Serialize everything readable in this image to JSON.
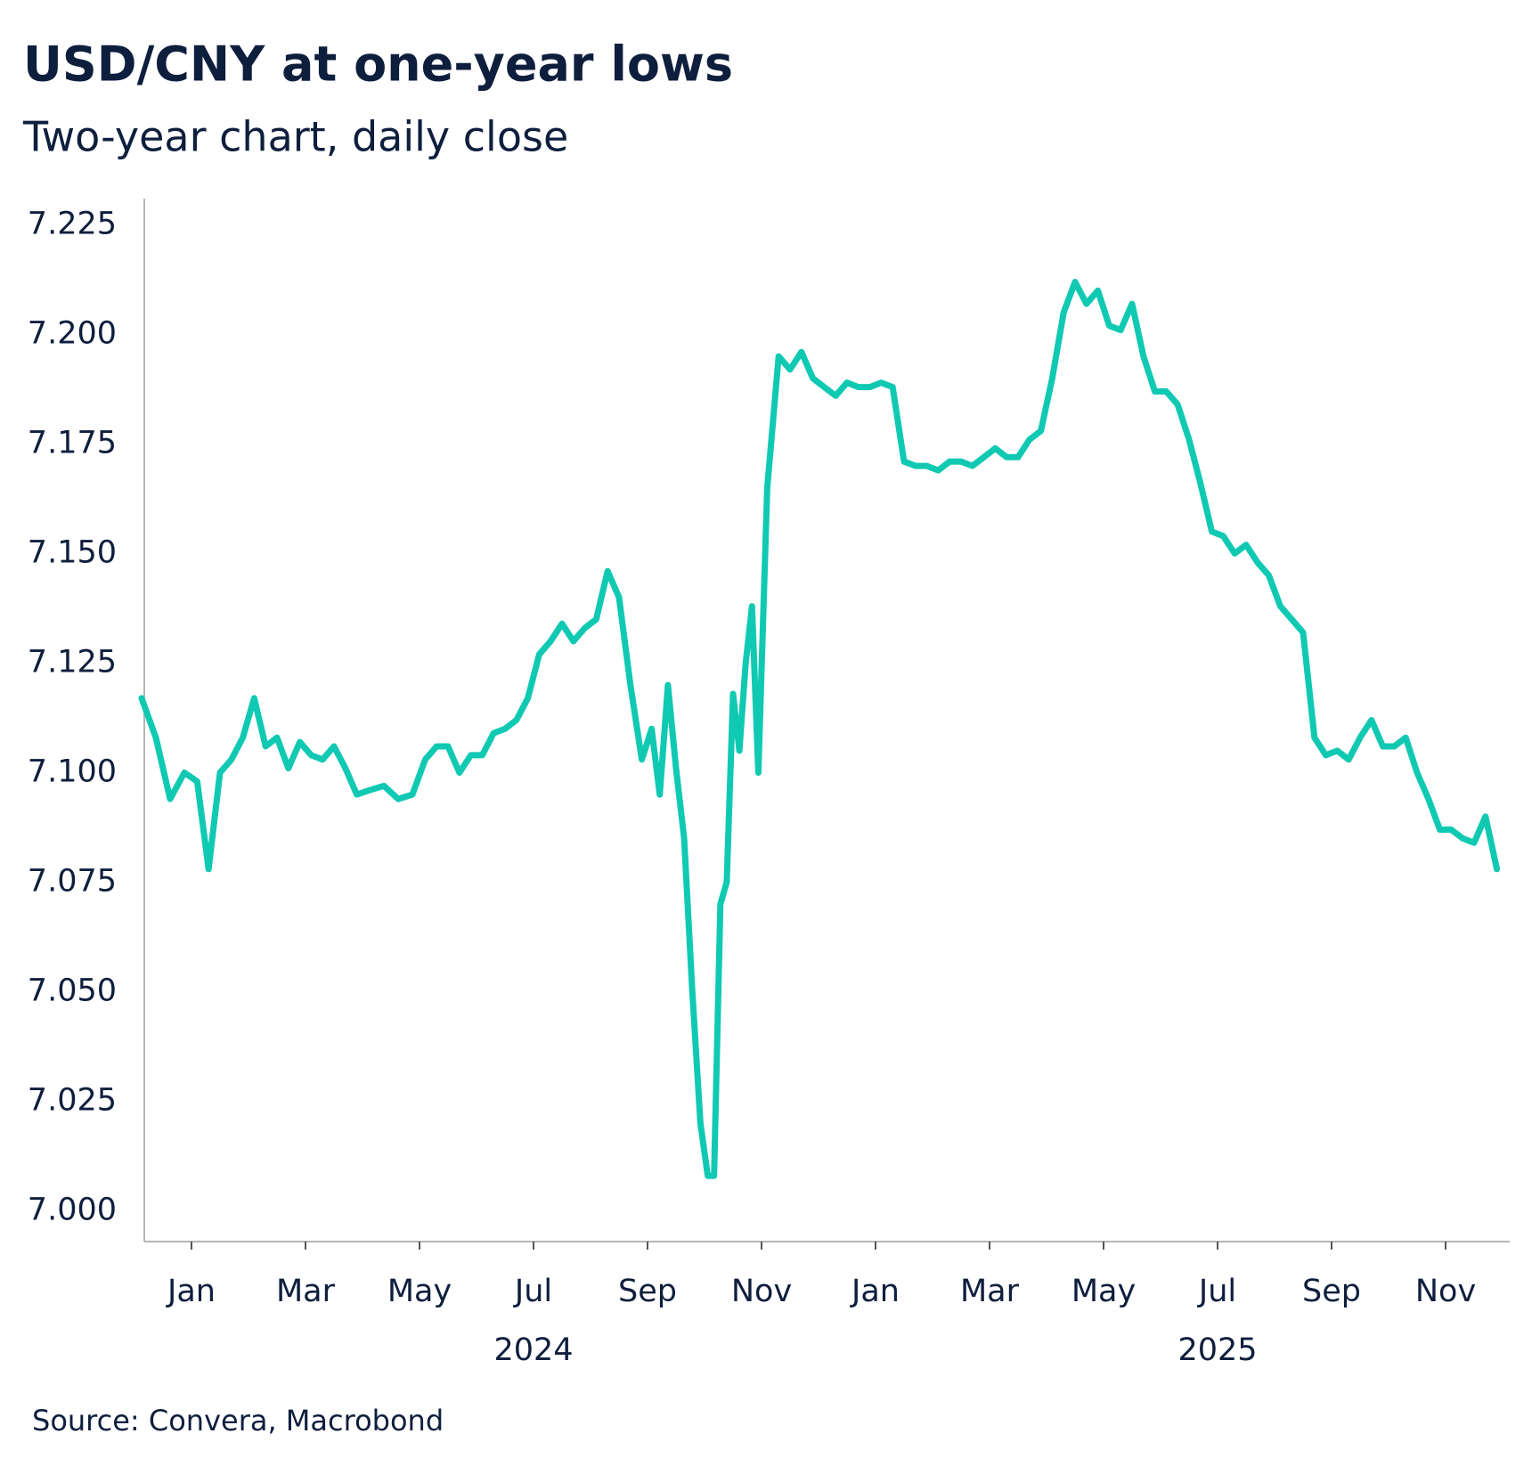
{
  "chart_data": {
    "type": "line",
    "title": "USD/CNY at one-year lows",
    "subtitle": "Two-year chart, daily close",
    "source": "Source: Convera, Macrobond",
    "x": [
      "2023-12",
      "2023-12",
      "2023-12",
      "2023-12",
      "2024-01",
      "2024-01",
      "2024-01",
      "2024-01",
      "2024-01",
      "2024-02",
      "2024-02",
      "2024-02",
      "2024-02",
      "2024-02",
      "2024-03",
      "2024-03",
      "2024-03",
      "2024-03",
      "2024-03",
      "2024-04",
      "2024-04",
      "2024-04",
      "2024-04",
      "2024-05",
      "2024-05",
      "2024-05",
      "2024-05",
      "2024-05",
      "2024-06",
      "2024-06",
      "2024-06",
      "2024-06",
      "2024-06",
      "2024-07",
      "2024-07",
      "2024-07",
      "2024-07",
      "2024-07",
      "2024-08",
      "2024-08",
      "2024-08",
      "2024-08",
      "2024-08",
      "2024-09",
      "2024-09",
      "2024-09",
      "2024-09",
      "2024-09",
      "2024-09",
      "2024-09",
      "2024-10",
      "2024-10",
      "2024-10",
      "2024-10",
      "2024-10",
      "2024-10",
      "2024-10",
      "2024-10",
      "2024-10",
      "2024-11",
      "2024-11",
      "2024-11",
      "2024-11",
      "2024-11",
      "2024-12",
      "2024-12",
      "2024-12",
      "2024-12",
      "2024-12",
      "2025-01",
      "2025-01",
      "2025-01",
      "2025-01",
      "2025-01",
      "2025-02",
      "2025-02",
      "2025-02",
      "2025-02",
      "2025-02",
      "2025-03",
      "2025-03",
      "2025-03",
      "2025-03",
      "2025-03",
      "2025-04",
      "2025-04",
      "2025-04",
      "2025-04",
      "2025-04",
      "2025-05",
      "2025-05",
      "2025-05",
      "2025-05",
      "2025-05",
      "2025-06",
      "2025-06",
      "2025-06",
      "2025-06",
      "2025-06",
      "2025-07",
      "2025-07",
      "2025-07",
      "2025-07",
      "2025-07",
      "2025-08",
      "2025-08",
      "2025-08",
      "2025-08",
      "2025-08",
      "2025-09",
      "2025-09",
      "2025-09",
      "2025-09",
      "2025-09",
      "2025-10",
      "2025-10",
      "2025-10",
      "2025-10",
      "2025-10",
      "2025-11",
      "2025-11",
      "2025-11",
      "2025-11",
      "2025-11"
    ],
    "series": [
      {
        "name": "USD/CNY",
        "color": "#10c9b3",
        "values": [
          7.117,
          7.108,
          7.094,
          7.1,
          7.098,
          7.078,
          7.1,
          7.103,
          7.108,
          7.117,
          7.106,
          7.108,
          7.101,
          7.107,
          7.104,
          7.103,
          7.106,
          7.101,
          7.095,
          7.096,
          7.097,
          7.094,
          7.095,
          7.103,
          7.106,
          7.106,
          7.1,
          7.104,
          7.104,
          7.109,
          7.11,
          7.112,
          7.117,
          7.127,
          7.13,
          7.134,
          7.13,
          7.133,
          7.135,
          7.146,
          7.14,
          7.12,
          7.103,
          7.11,
          7.095,
          7.12,
          7.101,
          7.085,
          7.05,
          7.02,
          7.008,
          7.008,
          7.07,
          7.075,
          7.118,
          7.105,
          7.125,
          7.138,
          7.1,
          7.165,
          7.195,
          7.192,
          7.196,
          7.19,
          7.188,
          7.186,
          7.189,
          7.188,
          7.188,
          7.189,
          7.188,
          7.171,
          7.17,
          7.17,
          7.169,
          7.171,
          7.171,
          7.17,
          7.172,
          7.174,
          7.172,
          7.172,
          7.176,
          7.178,
          7.19,
          7.205,
          7.212,
          7.207,
          7.21,
          7.202,
          7.201,
          7.207,
          7.195,
          7.187,
          7.187,
          7.184,
          7.176,
          7.166,
          7.155,
          7.154,
          7.15,
          7.152,
          7.148,
          7.145,
          7.138,
          7.135,
          7.132,
          7.108,
          7.104,
          7.105,
          7.103,
          7.108,
          7.112,
          7.106,
          7.106,
          7.108,
          7.1,
          7.094,
          7.087,
          7.087,
          7.085,
          7.084,
          7.09,
          7.078
        ]
      }
    ],
    "xlim": [
      "2023-12",
      "2025-11"
    ],
    "xticks": [
      {
        "value": "2024-01",
        "label": "Jan"
      },
      {
        "value": "2024-03",
        "label": "Mar"
      },
      {
        "value": "2024-05",
        "label": "May"
      },
      {
        "value": "2024-07",
        "label": "Jul"
      },
      {
        "value": "2024-09",
        "label": "Sep"
      },
      {
        "value": "2024-11",
        "label": "Nov"
      },
      {
        "value": "2025-01",
        "label": "Jan"
      },
      {
        "value": "2025-03",
        "label": "Mar"
      },
      {
        "value": "2025-05",
        "label": "May"
      },
      {
        "value": "2025-07",
        "label": "Jul"
      },
      {
        "value": "2025-09",
        "label": "Sep"
      },
      {
        "value": "2025-11",
        "label": "Nov"
      }
    ],
    "x_group_labels": [
      {
        "value": "2024-07",
        "label": "2024"
      },
      {
        "value": "2025-07",
        "label": "2025"
      }
    ],
    "ylim": [
      6.993,
      7.231
    ],
    "yticks": [
      {
        "value": 7.0,
        "label": "7.000"
      },
      7.025,
      {
        "value": 7.05,
        "label": "7.050"
      },
      7.075,
      {
        "value": 7.1,
        "label": "7.100"
      },
      7.125,
      {
        "value": 7.15,
        "label": "7.150"
      },
      7.175,
      {
        "value": 7.2,
        "label": "7.200"
      },
      7.225
    ],
    "grid": false
  }
}
